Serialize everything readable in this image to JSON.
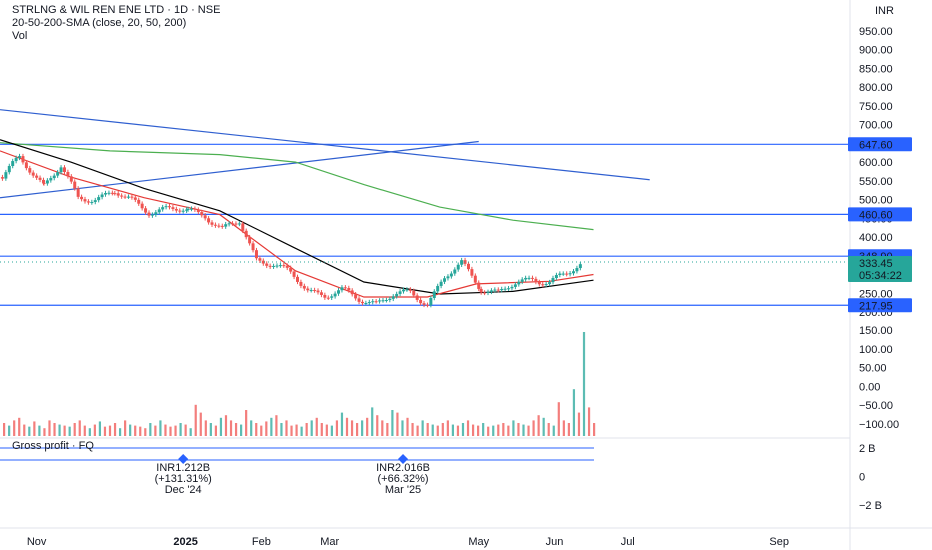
{
  "header": {
    "title": "STRLNG & WIL REN ENE LTD · 1D · NSE",
    "indicator": "20-50-200-SMA (close, 20, 50, 200)",
    "volume_label": "Vol",
    "currency": "INR"
  },
  "colors": {
    "up": "#26a69a",
    "down": "#ef5350",
    "sma20": "#e53935",
    "sma50": "#000000",
    "sma200": "#4caf50",
    "hline": "#2962ff",
    "trend": "#2f5fd0",
    "current_price_bg": "#26a69a"
  },
  "chart_data": [
    {
      "type": "candlestick",
      "title": "STRLNG & WIL REN ENE LTD · 1D · NSE",
      "y_ticks": [
        "950.00",
        "900.00",
        "850.00",
        "800.00",
        "750.00",
        "700.00",
        "650.00",
        "600.00",
        "550.00",
        "500.00",
        "450.00",
        "400.00",
        "350.00",
        "300.00",
        "250.00",
        "200.00"
      ],
      "ylim": [
        200,
        975
      ],
      "x_ticks": [
        "Nov",
        "2025",
        "Feb",
        "Mar",
        "May",
        "Jun",
        "Jul",
        "Sep"
      ],
      "x_range": [
        "2024-10-17",
        "2025-09-30"
      ],
      "close_series_monthly": [
        {
          "date": "2024-10-18",
          "close": 560
        },
        {
          "date": "2024-10-25",
          "close": 610
        },
        {
          "date": "2024-11-04",
          "close": 540
        },
        {
          "date": "2024-11-11",
          "close": 590
        },
        {
          "date": "2024-11-18",
          "close": 500
        },
        {
          "date": "2024-11-25",
          "close": 505
        },
        {
          "date": "2024-12-03",
          "close": 520
        },
        {
          "date": "2024-12-10",
          "close": 495
        },
        {
          "date": "2024-12-17",
          "close": 470
        },
        {
          "date": "2024-12-24",
          "close": 475
        },
        {
          "date": "2025-01-02",
          "close": 470
        },
        {
          "date": "2025-01-09",
          "close": 460
        },
        {
          "date": "2025-01-16",
          "close": 420
        },
        {
          "date": "2025-01-23",
          "close": 440
        },
        {
          "date": "2025-01-30",
          "close": 340
        },
        {
          "date": "2025-02-06",
          "close": 330
        },
        {
          "date": "2025-02-13",
          "close": 300
        },
        {
          "date": "2025-02-20",
          "close": 260
        },
        {
          "date": "2025-02-27",
          "close": 245
        },
        {
          "date": "2025-03-06",
          "close": 255
        },
        {
          "date": "2025-03-13",
          "close": 235
        },
        {
          "date": "2025-03-20",
          "close": 225
        },
        {
          "date": "2025-03-27",
          "close": 245
        },
        {
          "date": "2025-04-03",
          "close": 250
        },
        {
          "date": "2025-04-10",
          "close": 225
        },
        {
          "date": "2025-04-17",
          "close": 290
        },
        {
          "date": "2025-04-24",
          "close": 330
        },
        {
          "date": "2025-05-02",
          "close": 265
        },
        {
          "date": "2025-05-09",
          "close": 250
        },
        {
          "date": "2025-05-16",
          "close": 275
        },
        {
          "date": "2025-05-23",
          "close": 290
        },
        {
          "date": "2025-05-30",
          "close": 280
        },
        {
          "date": "2025-06-06",
          "close": 300
        },
        {
          "date": "2025-06-13",
          "close": 333.45
        }
      ],
      "sma20": [
        {
          "date": "2024-10-17",
          "value": 630
        },
        {
          "date": "2024-11-15",
          "value": 560
        },
        {
          "date": "2024-12-15",
          "value": 505
        },
        {
          "date": "2025-01-15",
          "value": 460
        },
        {
          "date": "2025-02-15",
          "value": 310
        },
        {
          "date": "2025-03-15",
          "value": 240
        },
        {
          "date": "2025-04-10",
          "value": 240
        },
        {
          "date": "2025-04-30",
          "value": 275
        },
        {
          "date": "2025-05-30",
          "value": 282
        },
        {
          "date": "2025-06-17",
          "value": 300
        }
      ],
      "sma50": [
        {
          "date": "2024-10-17",
          "value": 660
        },
        {
          "date": "2024-11-15",
          "value": 600
        },
        {
          "date": "2024-12-15",
          "value": 530
        },
        {
          "date": "2025-01-15",
          "value": 470
        },
        {
          "date": "2025-02-15",
          "value": 370
        },
        {
          "date": "2025-03-15",
          "value": 280
        },
        {
          "date": "2025-04-15",
          "value": 248
        },
        {
          "date": "2025-05-15",
          "value": 255
        },
        {
          "date": "2025-06-17",
          "value": 285
        }
      ],
      "sma200": [
        {
          "date": "2024-10-17",
          "value": 652
        },
        {
          "date": "2024-12-01",
          "value": 630
        },
        {
          "date": "2025-01-15",
          "value": 620
        },
        {
          "date": "2025-02-15",
          "value": 600
        },
        {
          "date": "2025-03-15",
          "value": 540
        },
        {
          "date": "2025-04-15",
          "value": 480
        },
        {
          "date": "2025-05-15",
          "value": 445
        },
        {
          "date": "2025-06-17",
          "value": 420
        }
      ],
      "horizontal_levels": [
        {
          "label": "647.60",
          "value": 647.6
        },
        {
          "label": "460.60",
          "value": 460.6
        },
        {
          "label": "348.90",
          "value": 348.9
        },
        {
          "label": "217.95",
          "value": 217.95
        }
      ],
      "current_price": {
        "label": "333.45",
        "countdown": "05:34:22",
        "value": 333.45
      },
      "trend_lines": [
        {
          "from": {
            "date": "2024-10-17",
            "value": 740
          },
          "to": {
            "date": "2025-07-10",
            "value": 553
          }
        },
        {
          "from": {
            "date": "2024-10-17",
            "value": 505
          },
          "to": {
            "date": "2025-05-01",
            "value": 655
          }
        }
      ]
    },
    {
      "type": "bar",
      "title": "Vol",
      "y_ticks": [
        "150.00",
        "100.00",
        "50.00",
        "0.00",
        "−50.00",
        "−100.00"
      ],
      "ylim": [
        -110,
        165
      ],
      "note": "volume histogram, green = up day, red = down day",
      "values_relative": [
        0.25,
        0.2,
        0.3,
        0.35,
        0.22,
        0.18,
        0.28,
        0.2,
        0.15,
        0.3,
        0.25,
        0.22,
        0.2,
        0.18,
        0.25,
        0.3,
        0.2,
        0.15,
        0.22,
        0.28,
        0.18,
        0.2,
        0.25,
        0.15,
        0.3,
        0.22,
        0.2,
        0.18,
        0.15,
        0.25,
        0.2,
        0.3,
        0.22,
        0.18,
        0.2,
        0.25,
        0.22,
        0.15,
        0.6,
        0.45,
        0.3,
        0.25,
        0.2,
        0.35,
        0.4,
        0.3,
        0.25,
        0.22,
        0.5,
        0.3,
        0.25,
        0.2,
        0.28,
        0.35,
        0.4,
        0.25,
        0.3,
        0.2,
        0.22,
        0.18,
        0.25,
        0.3,
        0.35,
        0.25,
        0.22,
        0.2,
        0.3,
        0.45,
        0.35,
        0.3,
        0.25,
        0.3,
        0.35,
        0.55,
        0.4,
        0.3,
        0.25,
        0.5,
        0.45,
        0.3,
        0.35,
        0.25,
        0.2,
        0.3,
        0.25,
        0.22,
        0.2,
        0.25,
        0.3,
        0.22,
        0.2,
        0.25,
        0.3,
        0.22,
        0.2,
        0.25,
        0.18,
        0.2,
        0.22,
        0.25,
        0.2,
        0.3,
        0.25,
        0.22,
        0.2,
        0.3,
        0.4,
        0.35,
        0.25,
        0.2,
        0.65,
        0.3,
        0.25,
        0.9,
        0.45,
        2.0,
        0.55,
        0.25
      ]
    },
    {
      "type": "scatter",
      "title": "Gross profit · FQ",
      "y_ticks": [
        "2 B",
        "0",
        "−2 B"
      ],
      "ylim": [
        -3,
        3
      ],
      "points": [
        {
          "date": "2024-12-31",
          "label": "INR1.212B",
          "change": "(+131.31%)",
          "period": "Dec '24"
        },
        {
          "date": "2025-03-31",
          "label": "INR2.016B",
          "change": "(+66.32%)",
          "period": "Mar '25"
        }
      ]
    }
  ]
}
